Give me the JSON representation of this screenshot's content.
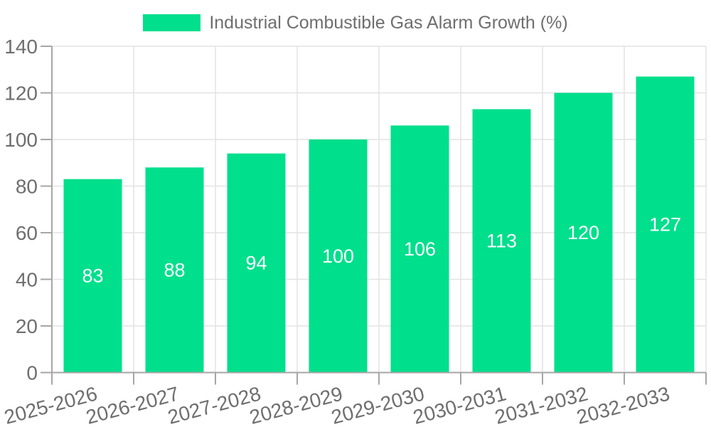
{
  "chart_data": {
    "type": "bar",
    "title": "Industrial Combustible Gas Alarm Growth (%)",
    "categories": [
      "2025-2026",
      "2026-2027",
      "2027-2028",
      "2028-2029",
      "2029-2030",
      "2030-2031",
      "2031-2032",
      "2032-2033"
    ],
    "values": [
      83,
      88,
      94,
      100,
      106,
      113,
      120,
      127
    ],
    "xlabel": "",
    "ylabel": "",
    "ylim": [
      0,
      140
    ],
    "yticks": [
      0,
      20,
      40,
      60,
      80,
      100,
      120,
      140
    ],
    "grid": true,
    "legend_position": "top-center",
    "bar_label_position": "inside-middle",
    "x_tick_rotation_deg": -15,
    "colors": {
      "bar": "#00DF8C",
      "bar_label": "#ffffff",
      "axis_text": "#6e6e6e",
      "axis_line": "#a6a6a6",
      "grid_line": "#e3e3e3",
      "background": "#ffffff"
    }
  }
}
